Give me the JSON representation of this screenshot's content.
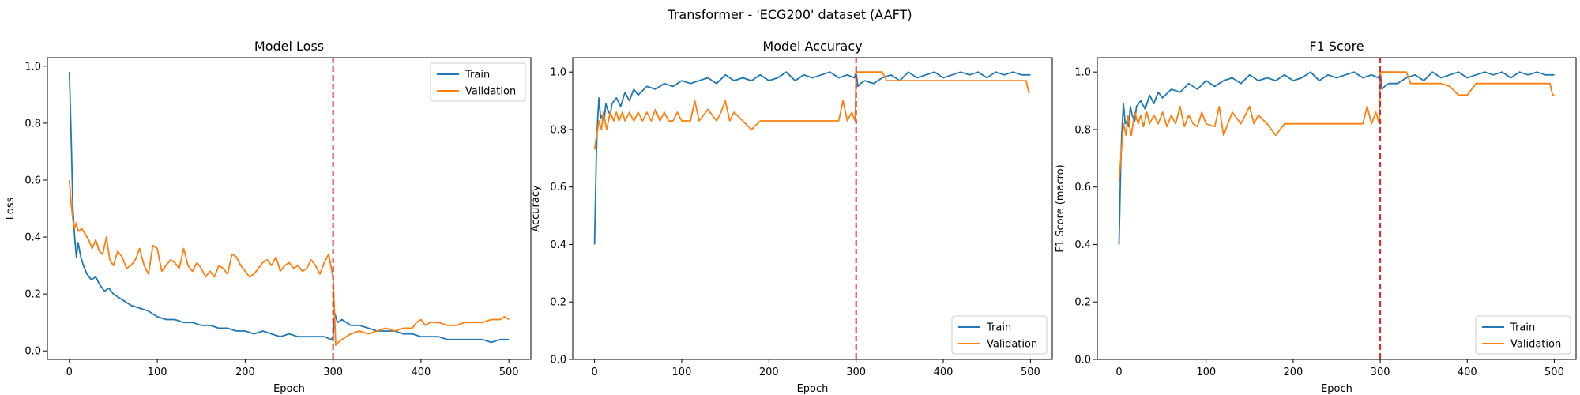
{
  "figure": {
    "suptitle": "Transformer - 'ECG200' dataset (AAFT)"
  },
  "colors": {
    "train": "#1f77b4",
    "validation": "#ff7f0e",
    "divider": "#d62728"
  },
  "chart_data": [
    {
      "type": "line",
      "title": "Model Loss",
      "xlabel": "Epoch",
      "ylabel": "Loss",
      "xlim": [
        -25,
        525
      ],
      "ylim": [
        -0.03,
        1.03
      ],
      "xticks": [
        0,
        100,
        200,
        300,
        400,
        500
      ],
      "yticks": [
        0.0,
        0.2,
        0.4,
        0.6,
        0.8,
        1.0
      ],
      "ytick_labels": [
        "0.0",
        "0.2",
        "0.4",
        "0.6",
        "0.8",
        "1.0"
      ],
      "divider_x": 300,
      "legend_position": "upper-right",
      "legend": [
        "Train",
        "Validation"
      ],
      "series": [
        {
          "name": "Train",
          "x": [
            0,
            2,
            4,
            6,
            8,
            10,
            13,
            16,
            20,
            25,
            30,
            35,
            40,
            45,
            50,
            55,
            60,
            70,
            80,
            90,
            100,
            110,
            120,
            130,
            140,
            150,
            160,
            170,
            180,
            190,
            200,
            210,
            220,
            230,
            240,
            250,
            260,
            270,
            280,
            290,
            298,
            300,
            302,
            305,
            310,
            320,
            330,
            340,
            350,
            360,
            370,
            380,
            390,
            400,
            410,
            420,
            430,
            440,
            450,
            460,
            470,
            480,
            490,
            500
          ],
          "y": [
            0.98,
            0.76,
            0.5,
            0.4,
            0.33,
            0.38,
            0.33,
            0.3,
            0.27,
            0.25,
            0.26,
            0.23,
            0.21,
            0.22,
            0.2,
            0.19,
            0.18,
            0.16,
            0.15,
            0.14,
            0.12,
            0.11,
            0.11,
            0.1,
            0.1,
            0.09,
            0.09,
            0.08,
            0.08,
            0.07,
            0.07,
            0.06,
            0.07,
            0.06,
            0.05,
            0.06,
            0.05,
            0.05,
            0.05,
            0.05,
            0.04,
            0.05,
            0.13,
            0.1,
            0.11,
            0.09,
            0.09,
            0.08,
            0.07,
            0.07,
            0.07,
            0.06,
            0.06,
            0.05,
            0.05,
            0.05,
            0.04,
            0.04,
            0.04,
            0.04,
            0.04,
            0.03,
            0.04,
            0.04
          ]
        },
        {
          "name": "Validation",
          "x": [
            0,
            2,
            4,
            6,
            8,
            10,
            14,
            18,
            22,
            26,
            30,
            34,
            38,
            42,
            46,
            50,
            55,
            60,
            65,
            70,
            75,
            80,
            85,
            90,
            95,
            100,
            105,
            110,
            115,
            120,
            125,
            130,
            135,
            140,
            145,
            150,
            155,
            160,
            165,
            170,
            175,
            180,
            185,
            190,
            195,
            200,
            205,
            210,
            215,
            220,
            225,
            230,
            235,
            240,
            245,
            250,
            255,
            260,
            265,
            270,
            275,
            280,
            285,
            290,
            295,
            298,
            300,
            303,
            306,
            310,
            315,
            320,
            330,
            340,
            350,
            360,
            370,
            380,
            390,
            395,
            400,
            405,
            410,
            420,
            430,
            440,
            450,
            460,
            470,
            480,
            490,
            495,
            500
          ],
          "y": [
            0.6,
            0.52,
            0.46,
            0.43,
            0.45,
            0.42,
            0.43,
            0.41,
            0.39,
            0.36,
            0.39,
            0.35,
            0.34,
            0.4,
            0.32,
            0.3,
            0.35,
            0.33,
            0.29,
            0.3,
            0.32,
            0.36,
            0.3,
            0.27,
            0.37,
            0.36,
            0.28,
            0.3,
            0.32,
            0.31,
            0.29,
            0.36,
            0.3,
            0.28,
            0.31,
            0.29,
            0.26,
            0.28,
            0.26,
            0.3,
            0.29,
            0.27,
            0.34,
            0.33,
            0.3,
            0.28,
            0.26,
            0.27,
            0.29,
            0.31,
            0.32,
            0.3,
            0.33,
            0.28,
            0.3,
            0.31,
            0.29,
            0.3,
            0.28,
            0.29,
            0.32,
            0.3,
            0.27,
            0.31,
            0.34,
            0.29,
            0.26,
            0.02,
            0.03,
            0.04,
            0.05,
            0.06,
            0.07,
            0.06,
            0.07,
            0.08,
            0.07,
            0.08,
            0.08,
            0.1,
            0.11,
            0.09,
            0.1,
            0.1,
            0.09,
            0.09,
            0.1,
            0.1,
            0.1,
            0.11,
            0.11,
            0.12,
            0.11
          ]
        }
      ]
    },
    {
      "type": "line",
      "title": "Model Accuracy",
      "xlabel": "Epoch",
      "ylabel": "Accuracy",
      "xlim": [
        -25,
        525
      ],
      "ylim": [
        0.0,
        1.05
      ],
      "xticks": [
        0,
        100,
        200,
        300,
        400,
        500
      ],
      "yticks": [
        0.0,
        0.2,
        0.4,
        0.6,
        0.8,
        1.0
      ],
      "ytick_labels": [
        "0.0",
        "0.2",
        "0.4",
        "0.6",
        "0.8",
        "1.0"
      ],
      "divider_x": 300,
      "legend_position": "lower-right",
      "legend": [
        "Train",
        "Validation"
      ],
      "series": [
        {
          "name": "Train",
          "x": [
            0,
            2,
            3,
            5,
            7,
            9,
            11,
            13,
            15,
            18,
            20,
            25,
            30,
            35,
            40,
            45,
            50,
            60,
            70,
            80,
            90,
            100,
            110,
            120,
            130,
            140,
            150,
            160,
            170,
            180,
            190,
            200,
            210,
            220,
            230,
            240,
            250,
            260,
            270,
            280,
            290,
            298,
            300,
            302,
            305,
            310,
            320,
            330,
            340,
            350,
            360,
            370,
            380,
            390,
            400,
            410,
            420,
            430,
            440,
            450,
            460,
            470,
            480,
            490,
            500
          ],
          "y": [
            0.4,
            0.7,
            0.8,
            0.91,
            0.84,
            0.85,
            0.83,
            0.89,
            0.87,
            0.85,
            0.89,
            0.91,
            0.88,
            0.93,
            0.9,
            0.94,
            0.92,
            0.95,
            0.94,
            0.96,
            0.95,
            0.97,
            0.96,
            0.97,
            0.98,
            0.96,
            0.99,
            0.97,
            0.98,
            0.97,
            0.99,
            0.97,
            0.98,
            1.0,
            0.97,
            0.99,
            0.98,
            0.99,
            1.0,
            0.98,
            0.99,
            0.98,
            1.0,
            0.95,
            0.96,
            0.97,
            0.96,
            0.98,
            0.99,
            0.97,
            1.0,
            0.98,
            0.99,
            1.0,
            0.98,
            0.99,
            1.0,
            0.99,
            1.0,
            0.98,
            1.0,
            0.99,
            1.0,
            0.99,
            0.99
          ]
        },
        {
          "name": "Validation",
          "x": [
            0,
            5,
            8,
            10,
            14,
            16,
            18,
            22,
            25,
            28,
            32,
            35,
            40,
            45,
            50,
            55,
            60,
            65,
            70,
            75,
            80,
            85,
            90,
            95,
            100,
            110,
            115,
            120,
            130,
            140,
            145,
            150,
            155,
            160,
            170,
            180,
            190,
            200,
            210,
            220,
            230,
            240,
            250,
            260,
            270,
            280,
            285,
            290,
            295,
            299,
            300,
            310,
            320,
            330,
            335,
            340,
            345,
            350,
            360,
            370,
            380,
            390,
            400,
            410,
            420,
            430,
            440,
            450,
            460,
            470,
            480,
            490,
            495,
            498,
            500
          ],
          "y": [
            0.73,
            0.83,
            0.8,
            0.86,
            0.8,
            0.83,
            0.86,
            0.83,
            0.86,
            0.83,
            0.86,
            0.83,
            0.86,
            0.83,
            0.86,
            0.83,
            0.86,
            0.83,
            0.87,
            0.83,
            0.86,
            0.83,
            0.83,
            0.86,
            0.83,
            0.83,
            0.9,
            0.83,
            0.87,
            0.83,
            0.86,
            0.9,
            0.83,
            0.86,
            0.83,
            0.8,
            0.83,
            0.83,
            0.83,
            0.83,
            0.83,
            0.83,
            0.83,
            0.83,
            0.83,
            0.83,
            0.9,
            0.83,
            0.86,
            0.83,
            1.0,
            1.0,
            1.0,
            1.0,
            0.97,
            0.97,
            0.97,
            0.97,
            0.97,
            0.97,
            0.97,
            0.97,
            0.97,
            0.97,
            0.97,
            0.97,
            0.97,
            0.97,
            0.97,
            0.97,
            0.97,
            0.97,
            0.97,
            0.93,
            0.93
          ]
        }
      ]
    },
    {
      "type": "line",
      "title": "F1 Score",
      "xlabel": "Epoch",
      "ylabel": "F1 Score (macro)",
      "xlim": [
        -25,
        525
      ],
      "ylim": [
        0.0,
        1.05
      ],
      "xticks": [
        0,
        100,
        200,
        300,
        400,
        500
      ],
      "yticks": [
        0.0,
        0.2,
        0.4,
        0.6,
        0.8,
        1.0
      ],
      "ytick_labels": [
        "0.0",
        "0.2",
        "0.4",
        "0.6",
        "0.8",
        "1.0"
      ],
      "divider_x": 300,
      "legend_position": "lower-right",
      "legend": [
        "Train",
        "Validation"
      ],
      "series": [
        {
          "name": "Train",
          "x": [
            0,
            2,
            3,
            5,
            7,
            9,
            11,
            13,
            15,
            18,
            20,
            25,
            30,
            35,
            40,
            45,
            50,
            60,
            70,
            80,
            90,
            100,
            110,
            120,
            130,
            140,
            150,
            160,
            170,
            180,
            190,
            200,
            210,
            220,
            230,
            240,
            250,
            260,
            270,
            280,
            290,
            298,
            300,
            302,
            305,
            310,
            320,
            330,
            340,
            350,
            360,
            370,
            380,
            390,
            400,
            410,
            420,
            430,
            440,
            450,
            460,
            470,
            480,
            490,
            500
          ],
          "y": [
            0.4,
            0.68,
            0.78,
            0.89,
            0.82,
            0.83,
            0.81,
            0.88,
            0.85,
            0.83,
            0.88,
            0.9,
            0.87,
            0.92,
            0.89,
            0.93,
            0.91,
            0.94,
            0.93,
            0.96,
            0.94,
            0.97,
            0.95,
            0.97,
            0.98,
            0.96,
            0.99,
            0.97,
            0.98,
            0.97,
            0.99,
            0.97,
            0.98,
            1.0,
            0.97,
            0.99,
            0.98,
            0.99,
            1.0,
            0.98,
            0.99,
            0.98,
            1.0,
            0.94,
            0.95,
            0.96,
            0.96,
            0.98,
            0.99,
            0.97,
            1.0,
            0.98,
            0.99,
            1.0,
            0.98,
            0.99,
            1.0,
            0.99,
            1.0,
            0.98,
            1.0,
            0.99,
            1.0,
            0.99,
            0.99
          ]
        },
        {
          "name": "Validation",
          "x": [
            0,
            5,
            8,
            10,
            14,
            16,
            18,
            22,
            25,
            28,
            32,
            35,
            40,
            45,
            50,
            55,
            60,
            65,
            70,
            75,
            80,
            85,
            90,
            95,
            100,
            110,
            115,
            120,
            130,
            140,
            145,
            150,
            155,
            160,
            170,
            180,
            190,
            200,
            210,
            220,
            230,
            240,
            250,
            260,
            270,
            280,
            285,
            290,
            295,
            299,
            300,
            310,
            320,
            330,
            335,
            340,
            345,
            350,
            360,
            370,
            380,
            390,
            400,
            410,
            420,
            430,
            440,
            450,
            460,
            470,
            480,
            490,
            495,
            498,
            500
          ],
          "y": [
            0.62,
            0.82,
            0.78,
            0.85,
            0.78,
            0.82,
            0.86,
            0.82,
            0.85,
            0.81,
            0.86,
            0.82,
            0.85,
            0.82,
            0.86,
            0.81,
            0.85,
            0.82,
            0.88,
            0.81,
            0.85,
            0.82,
            0.81,
            0.86,
            0.82,
            0.81,
            0.88,
            0.78,
            0.86,
            0.82,
            0.85,
            0.88,
            0.82,
            0.85,
            0.82,
            0.78,
            0.82,
            0.82,
            0.82,
            0.82,
            0.82,
            0.82,
            0.82,
            0.82,
            0.82,
            0.82,
            0.88,
            0.82,
            0.86,
            0.82,
            1.0,
            1.0,
            1.0,
            1.0,
            0.96,
            0.96,
            0.96,
            0.96,
            0.96,
            0.96,
            0.95,
            0.92,
            0.92,
            0.96,
            0.96,
            0.96,
            0.96,
            0.96,
            0.96,
            0.96,
            0.96,
            0.96,
            0.96,
            0.92,
            0.92
          ]
        }
      ]
    }
  ]
}
